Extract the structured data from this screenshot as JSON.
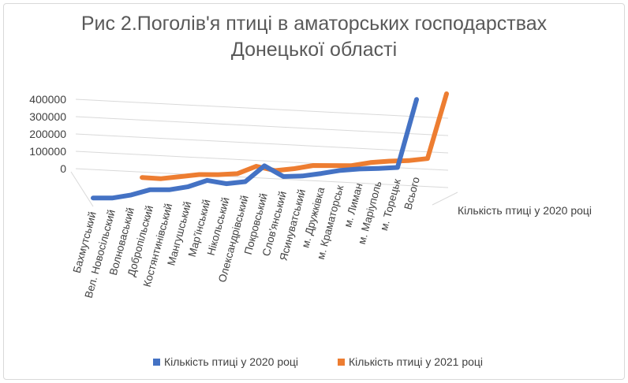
{
  "chart_data": {
    "type": "line",
    "title_line1": "Рис 2.Поголів'я птиці в аматорських господарствах",
    "title_line2": "Донецької області",
    "categories": [
      "Бахмутський",
      "Вел. Новосільский",
      "Волноваський",
      "Добропільский",
      "Костянтинівський",
      "Мангушський",
      "Мар'їнський",
      "Нікольський",
      "Олександрівський",
      "Покровський",
      "Слов'янський",
      "Ясинуватський",
      "м. Дружківка",
      "м. Краматорськ",
      "м. Лиман",
      "м. Маріуполь",
      "м. Торецьк",
      "Всього"
    ],
    "y_ticks": [
      "400000",
      "300000",
      "200000",
      "100000",
      "0"
    ],
    "ylim": [
      0,
      400000
    ],
    "depth_axis_label": "Кількість птиці у 2020 році",
    "series": [
      {
        "name": "Кількість птиці у 2020 році",
        "color": "#4472c4",
        "values": [
          40000,
          30000,
          35000,
          50000,
          40000,
          45000,
          65000,
          40000,
          40000,
          105000,
          45000,
          38000,
          40000,
          45000,
          42000,
          35000,
          30000,
          340000
        ]
      },
      {
        "name": "Кількість птиці у 2021 році",
        "color": "#ed7d31",
        "values": [
          null,
          60000,
          45000,
          45000,
          45000,
          35000,
          30000,
          55000,
          25000,
          25000,
          30000,
          20000,
          10000,
          15000,
          12000,
          5000,
          5000,
          300000
        ]
      }
    ],
    "legend_position": "bottom",
    "grid": true
  }
}
